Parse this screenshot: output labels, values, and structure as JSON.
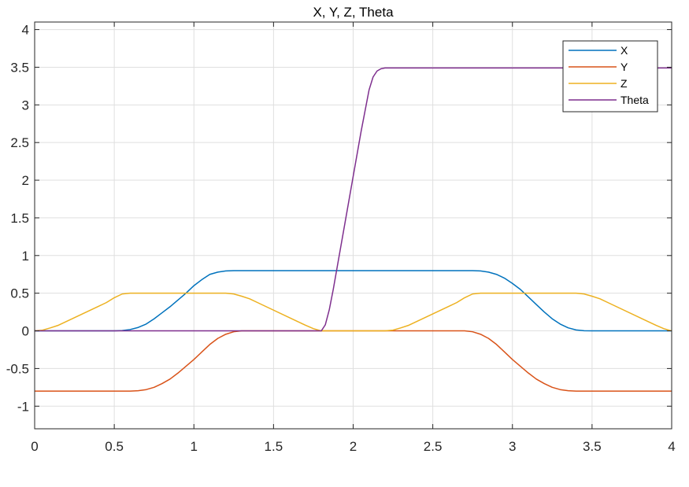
{
  "chart_data": {
    "type": "line",
    "title": "X, Y, Z, Theta",
    "xlabel": "",
    "ylabel": "",
    "xlim": [
      0,
      4
    ],
    "ylim": [
      -1.3,
      4.1
    ],
    "xticks": [
      0,
      0.5,
      1,
      1.5,
      2,
      2.5,
      3,
      3.5,
      4
    ],
    "xtick_labels": [
      "0",
      "0.5",
      "1",
      "1.5",
      "2",
      "2.5",
      "3",
      "3.5",
      "4"
    ],
    "yticks": [
      -1,
      -0.5,
      0,
      0.5,
      1,
      1.5,
      2,
      2.5,
      3,
      3.5,
      4
    ],
    "ytick_labels": [
      "-1",
      "-0.5",
      "0",
      "0.5",
      "1",
      "1.5",
      "2",
      "2.5",
      "3",
      "3.5",
      "4"
    ],
    "grid": true,
    "legend_position": "top-right",
    "series": [
      {
        "name": "X",
        "color": "#0072BD",
        "x": [
          0,
          0.5,
          0.55,
          0.6,
          0.65,
          0.7,
          0.75,
          0.8,
          0.85,
          0.9,
          0.95,
          1.0,
          1.05,
          1.1,
          1.15,
          1.2,
          1.25,
          2.7,
          2.75,
          2.8,
          2.85,
          2.9,
          2.95,
          3.0,
          3.05,
          3.1,
          3.15,
          3.2,
          3.25,
          3.3,
          3.35,
          3.4,
          3.45,
          3.5,
          4.0
        ],
        "y": [
          0,
          0,
          0.004,
          0.018,
          0.045,
          0.09,
          0.16,
          0.24,
          0.32,
          0.41,
          0.5,
          0.6,
          0.68,
          0.75,
          0.78,
          0.795,
          0.8,
          0.8,
          0.8,
          0.795,
          0.78,
          0.75,
          0.7,
          0.63,
          0.55,
          0.45,
          0.35,
          0.25,
          0.16,
          0.09,
          0.04,
          0.012,
          0.002,
          0,
          0
        ]
      },
      {
        "name": "Y",
        "color": "#D95319",
        "x": [
          0,
          0.6,
          0.65,
          0.7,
          0.75,
          0.8,
          0.85,
          0.9,
          0.95,
          1.0,
          1.05,
          1.1,
          1.15,
          1.2,
          1.25,
          1.3,
          2.7,
          2.75,
          2.8,
          2.85,
          2.9,
          2.95,
          3.0,
          3.05,
          3.1,
          3.15,
          3.2,
          3.25,
          3.3,
          3.35,
          3.4,
          4.0
        ],
        "y": [
          -0.8,
          -0.8,
          -0.795,
          -0.78,
          -0.75,
          -0.7,
          -0.64,
          -0.56,
          -0.47,
          -0.38,
          -0.28,
          -0.18,
          -0.1,
          -0.045,
          -0.012,
          0,
          0,
          -0.012,
          -0.045,
          -0.1,
          -0.18,
          -0.28,
          -0.38,
          -0.47,
          -0.56,
          -0.64,
          -0.7,
          -0.75,
          -0.78,
          -0.795,
          -0.8,
          -0.8
        ]
      },
      {
        "name": "Z",
        "color": "#EDB120",
        "x": [
          0,
          0.05,
          0.1,
          0.15,
          0.4,
          0.45,
          0.5,
          0.55,
          0.6,
          1.2,
          1.25,
          1.3,
          1.35,
          1.4,
          1.65,
          1.7,
          1.75,
          1.8,
          2.2,
          2.25,
          2.3,
          2.35,
          2.6,
          2.65,
          2.7,
          2.75,
          2.8,
          3.4,
          3.45,
          3.5,
          3.55,
          3.6,
          3.85,
          3.9,
          3.95,
          4.0
        ],
        "y": [
          0,
          0.01,
          0.04,
          0.075,
          0.325,
          0.375,
          0.44,
          0.49,
          0.5,
          0.5,
          0.49,
          0.46,
          0.425,
          0.375,
          0.125,
          0.075,
          0.03,
          0,
          0,
          0.01,
          0.04,
          0.075,
          0.325,
          0.375,
          0.44,
          0.49,
          0.5,
          0.5,
          0.49,
          0.46,
          0.425,
          0.375,
          0.125,
          0.075,
          0.03,
          0
        ]
      },
      {
        "name": "Theta",
        "color": "#7E2F8E",
        "x": [
          0,
          1.8,
          1.825,
          1.85,
          1.875,
          1.9,
          1.95,
          2.0,
          2.05,
          2.1,
          2.125,
          2.15,
          2.175,
          2.2,
          4.0
        ],
        "y": [
          0,
          0,
          0.08,
          0.28,
          0.55,
          0.85,
          1.45,
          2.05,
          2.65,
          3.2,
          3.37,
          3.45,
          3.48,
          3.49,
          3.49
        ]
      }
    ]
  }
}
